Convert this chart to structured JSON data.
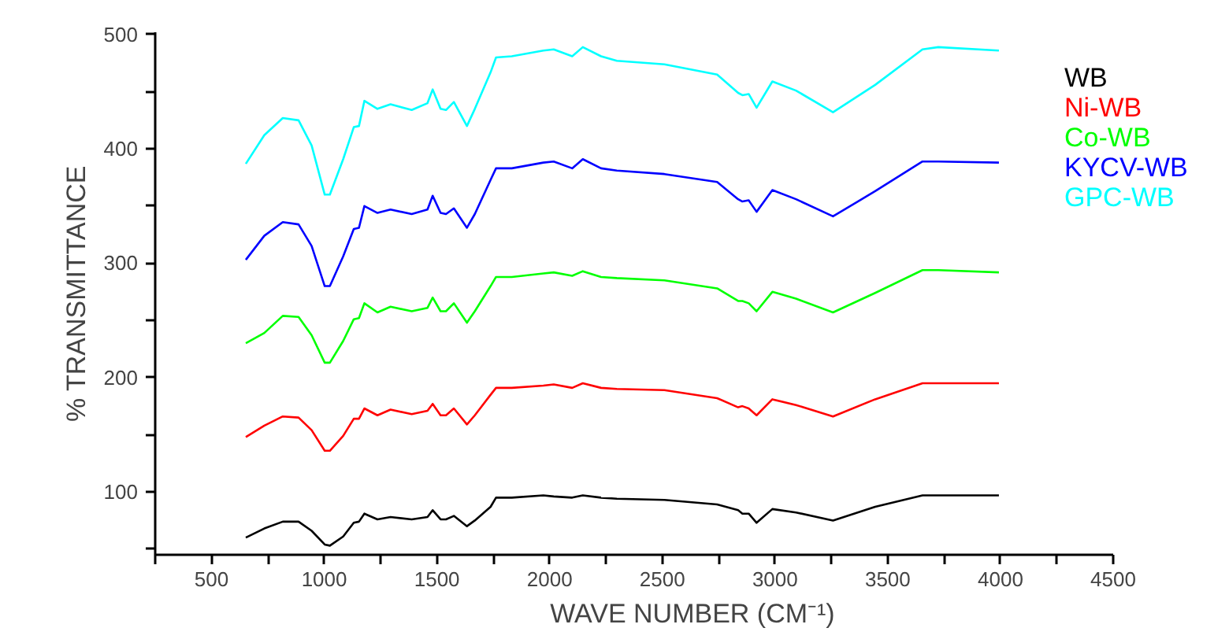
{
  "chart_data": {
    "type": "line",
    "xlabel": "WAVE NUMBER (CM⁻¹)",
    "ylabel": "% TRANSMITTANCE",
    "xlim": [
      250,
      4500
    ],
    "ylim": [
      45,
      502
    ],
    "xticks": [
      {
        "value": 250,
        "label": null
      },
      500,
      {
        "value": 750,
        "label": null
      },
      1000,
      {
        "value": 1250,
        "label": null
      },
      1500,
      {
        "value": 1750,
        "label": null
      },
      2000,
      {
        "value": 2250,
        "label": null
      },
      2500,
      {
        "value": 2750,
        "label": null
      },
      3000,
      {
        "value": 3250,
        "label": null
      },
      3500,
      {
        "value": 3750,
        "label": null
      },
      4000,
      {
        "value": 4250,
        "label": null
      },
      4500
    ],
    "yticks": [
      {
        "value": 50,
        "label": null
      },
      100,
      {
        "value": 150,
        "label": null
      },
      200,
      {
        "value": 250,
        "label": null
      },
      300,
      {
        "value": 350,
        "label": null
      },
      400,
      {
        "value": 450,
        "label": null
      },
      500
    ],
    "line_style": "solid",
    "x": [
      652,
      734,
      816,
      886,
      944,
      1002,
      1025,
      1084,
      1131,
      1154,
      1178,
      1236,
      1294,
      1388,
      1458,
      1481,
      1516,
      1540,
      1575,
      1633,
      1668,
      1738,
      1762,
      1832,
      1972,
      2018,
      2100,
      2147,
      2228,
      2298,
      2509,
      2743,
      2836,
      2855,
      2883,
      2918,
      2988,
      3093,
      3257,
      3444,
      3654,
      3724,
      3993
    ],
    "series": [
      {
        "name": "WB",
        "color": "#000000",
        "values": [
          60,
          68,
          74,
          74,
          66,
          54,
          53,
          61,
          73,
          74,
          81,
          76,
          78,
          76,
          78,
          84,
          76,
          76,
          79,
          70,
          75,
          87,
          95,
          95,
          97,
          96,
          95,
          97,
          95,
          94,
          93,
          89,
          84,
          81,
          81,
          73,
          85,
          82,
          75,
          87,
          97,
          97,
          97
        ]
      },
      {
        "name": "Ni-WB",
        "color": "#ff0000",
        "values": [
          148,
          158,
          166,
          165,
          154,
          136,
          136,
          149,
          164,
          164,
          173,
          167,
          172,
          168,
          171,
          177,
          167,
          167,
          173,
          159,
          167,
          185,
          191,
          191,
          193,
          194,
          191,
          195,
          191,
          190,
          189,
          182,
          174,
          175,
          173,
          167,
          181,
          176,
          166,
          181,
          195,
          195,
          195
        ]
      },
      {
        "name": "Co-WB",
        "color": "#00ff00",
        "values": [
          230,
          239,
          254,
          253,
          237,
          213,
          213,
          232,
          251,
          252,
          265,
          257,
          262,
          258,
          261,
          270,
          258,
          258,
          265,
          248,
          258,
          280,
          288,
          288,
          291,
          292,
          289,
          293,
          288,
          287,
          285,
          278,
          267,
          267,
          265,
          258,
          275,
          269,
          257,
          274,
          294,
          294,
          292
        ]
      },
      {
        "name": "KYCV-WB",
        "color": "#0000ff",
        "values": [
          303,
          324,
          336,
          334,
          315,
          280,
          280,
          306,
          330,
          331,
          350,
          344,
          347,
          343,
          347,
          359,
          344,
          343,
          348,
          331,
          343,
          373,
          383,
          383,
          388,
          389,
          383,
          391,
          383,
          381,
          378,
          371,
          356,
          354,
          355,
          345,
          364,
          356,
          341,
          363,
          389,
          389,
          388
        ]
      },
      {
        "name": "GPC-WB",
        "color": "#00ffff",
        "values": [
          387,
          412,
          427,
          425,
          403,
          360,
          360,
          391,
          419,
          420,
          442,
          435,
          439,
          434,
          440,
          452,
          435,
          434,
          441,
          420,
          435,
          467,
          480,
          481,
          486,
          487,
          481,
          489,
          481,
          477,
          474,
          465,
          449,
          447,
          448,
          436,
          459,
          451,
          432,
          456,
          487,
          489,
          486
        ]
      }
    ]
  }
}
